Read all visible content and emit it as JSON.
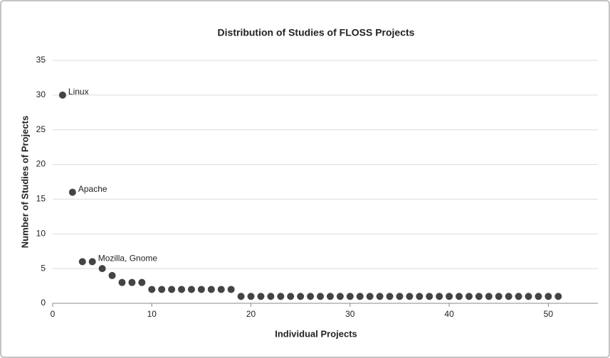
{
  "chart_data": {
    "type": "scatter",
    "title": "Distribution of Studies of FLOSS Projects",
    "x_label": "Individual Projects",
    "y_label": "Number of Studies of Projects",
    "x": [
      1,
      2,
      3,
      4,
      5,
      6,
      7,
      8,
      9,
      10,
      11,
      12,
      13,
      14,
      15,
      16,
      17,
      18,
      19,
      20,
      21,
      22,
      23,
      24,
      25,
      26,
      27,
      28,
      29,
      30,
      31,
      32,
      33,
      34,
      35,
      36,
      37,
      38,
      39,
      40,
      41,
      42,
      43,
      44,
      45,
      46,
      47,
      48,
      49,
      50,
      51
    ],
    "values": [
      30,
      16,
      6,
      6,
      5,
      4,
      3,
      3,
      3,
      2,
      2,
      2,
      2,
      2,
      2,
      2,
      2,
      2,
      1,
      1,
      1,
      1,
      1,
      1,
      1,
      1,
      1,
      1,
      1,
      1,
      1,
      1,
      1,
      1,
      1,
      1,
      1,
      1,
      1,
      1,
      1,
      1,
      1,
      1,
      1,
      1,
      1,
      1,
      1,
      1,
      1
    ],
    "point_labels": [
      "Linux",
      "Apache",
      null,
      "Mozilla, Gnome",
      null,
      null,
      null,
      null,
      null,
      null,
      null,
      null,
      null,
      null,
      null,
      null,
      null,
      null,
      null,
      null,
      null,
      null,
      null,
      null,
      null,
      null,
      null,
      null,
      null,
      null,
      null,
      null,
      null,
      null,
      null,
      null,
      null,
      null,
      null,
      null,
      null,
      null,
      null,
      null,
      null,
      null,
      null,
      null,
      null,
      null,
      null
    ],
    "color": "#444444",
    "xlim": [
      0,
      55
    ],
    "xticks": [
      0,
      10,
      20,
      30,
      40,
      50
    ],
    "ylim": [
      0,
      35
    ],
    "yticks": [
      0,
      5,
      10,
      15,
      20,
      25,
      30,
      35
    ],
    "grid": true
  }
}
